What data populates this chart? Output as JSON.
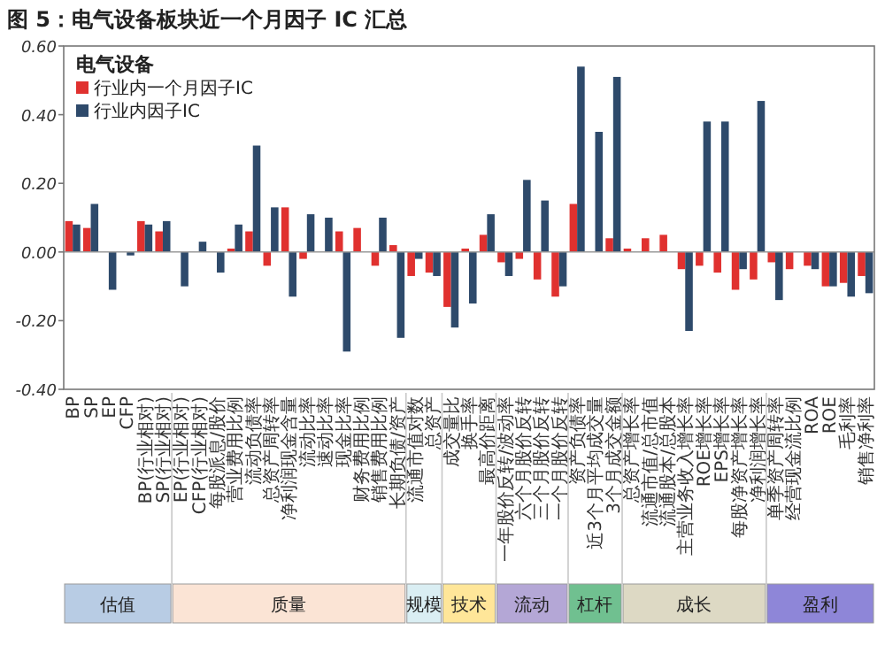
{
  "chart_data": {
    "type": "bar",
    "title": "图 5：电气设备板块近一个月因子 IC 汇总",
    "legend_title": "电气设备",
    "legend": "top left",
    "categories": [
      "BP",
      "SP",
      "EP",
      "CFP",
      "BP(行业相对)",
      "SP(行业相对)",
      "EP(行业相对)",
      "CFP(行业相对)",
      "每股派息/股价",
      "营业费用比例",
      "流动负债率",
      "总资产周转率",
      "净利润现金含量",
      "流动比率",
      "速动比率",
      "现金比率",
      "财务费用比例",
      "销售费用比例",
      "长期负债/资产",
      "流通市值对数",
      "总资产",
      "成交量比",
      "换手率",
      "最高价距离",
      "一年股价反转/波动率",
      "六个月股价反转",
      "三个月股价反转",
      "一个月股价反转",
      "资产负债率",
      "近3个月平均成交量",
      "3个月成交金额",
      "总资产增长率",
      "流通市值/总市值",
      "流通股本/总股本",
      "主营业务收入增长率",
      "ROE增长率",
      "EPS增长率",
      "每股净资产增长率",
      "净利润增长率",
      "单季资产周转率",
      "经营现金流比例",
      "ROA",
      "ROE",
      "毛利率",
      "销售净利率"
    ],
    "series": [
      {
        "name": "行业内一个月因子IC",
        "color": "#e0312f",
        "values": [
          0.09,
          0.07,
          0.0,
          0.0,
          0.09,
          0.06,
          0.0,
          0.0,
          0.0,
          0.01,
          0.06,
          -0.04,
          0.13,
          -0.02,
          0.0,
          0.06,
          0.07,
          -0.04,
          0.02,
          -0.07,
          -0.06,
          -0.16,
          0.01,
          0.05,
          -0.03,
          -0.02,
          -0.08,
          -0.13,
          0.14,
          0.0,
          0.04,
          0.01,
          0.04,
          0.05,
          -0.05,
          -0.04,
          -0.06,
          -0.11,
          -0.08,
          -0.03,
          -0.05,
          -0.04,
          -0.1,
          -0.09,
          -0.07
        ]
      },
      {
        "name": "行业内因子IC",
        "color": "#2e4a6b",
        "values": [
          0.08,
          0.14,
          -0.11,
          -0.01,
          0.08,
          0.09,
          -0.1,
          0.03,
          -0.06,
          0.08,
          0.31,
          0.13,
          -0.13,
          0.11,
          0.1,
          -0.29,
          0.0,
          0.1,
          -0.25,
          -0.02,
          -0.07,
          -0.22,
          -0.15,
          0.11,
          -0.07,
          0.21,
          0.15,
          -0.1,
          0.54,
          0.35,
          0.51,
          0.0,
          0.0,
          0.0,
          -0.23,
          0.38,
          0.38,
          -0.05,
          0.44,
          -0.14,
          0.0,
          -0.05,
          -0.1,
          -0.13,
          -0.12
        ]
      }
    ],
    "ylim": [
      -0.4,
      0.6
    ],
    "yticks": [
      {
        "value": -0.4,
        "label": "-0.40"
      },
      {
        "value": -0.2,
        "label": "-0.20"
      },
      {
        "value": 0,
        "label": "0.00"
      },
      {
        "value": 0.2,
        "label": "0.20"
      },
      {
        "value": 0.4,
        "label": "0.40"
      },
      {
        "value": 0.6,
        "label": "0.60"
      }
    ],
    "annotations": [
      "估值",
      "质量",
      "规模",
      "技术",
      "流动",
      "杠杆",
      "成长",
      "盈利"
    ]
  }
}
